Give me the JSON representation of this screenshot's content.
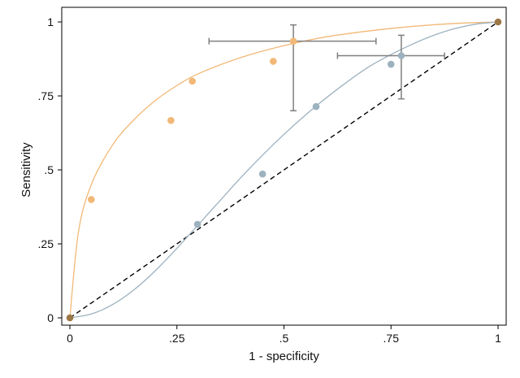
{
  "chart_data": {
    "type": "scatter",
    "xlabel": "1 - specificity",
    "ylabel": "Sensitivity",
    "xlim": [
      0,
      1
    ],
    "ylim": [
      0,
      1
    ],
    "x_ticks": [
      0,
      0.25,
      0.5,
      0.75,
      1
    ],
    "x_tick_labels": [
      "0",
      ".25",
      ".5",
      ".75",
      "1"
    ],
    "y_ticks": [
      0,
      0.25,
      0.5,
      0.75,
      1
    ],
    "y_tick_labels": [
      "0",
      ".25",
      ".5",
      ".75",
      "1"
    ],
    "grid": false,
    "legend": "none",
    "colors": {
      "orange": "#F2B877",
      "blue": "#9DB2BF",
      "endpoint": "#9C7846",
      "errorbar": "#7F7F7F",
      "reference": "#000000"
    },
    "series": [
      {
        "style": "points",
        "color": "orange",
        "x": [
          0.05,
          0.236,
          0.286,
          0.475,
          0.522
        ],
        "y": [
          0.4,
          0.667,
          0.8,
          0.867,
          0.935
        ]
      },
      {
        "style": "points",
        "color": "blue",
        "x": [
          0.298,
          0.45,
          0.575,
          0.75,
          0.774
        ],
        "y": [
          0.316,
          0.486,
          0.714,
          0.857,
          0.886
        ]
      },
      {
        "style": "points",
        "color": "endpoint",
        "x": [
          0,
          1
        ],
        "y": [
          0,
          1
        ]
      },
      {
        "style": "curve",
        "color": "orange",
        "x": [
          0,
          0.02,
          0.05,
          0.1,
          0.15,
          0.2,
          0.25,
          0.3,
          0.4,
          0.5,
          0.6,
          0.7,
          0.8,
          0.9,
          1.0
        ],
        "y": [
          0,
          0.29,
          0.45,
          0.585,
          0.67,
          0.735,
          0.785,
          0.825,
          0.88,
          0.92,
          0.95,
          0.97,
          0.985,
          0.995,
          1.0
        ]
      },
      {
        "style": "curve",
        "color": "blue",
        "x": [
          0,
          0.05,
          0.1,
          0.15,
          0.2,
          0.25,
          0.3,
          0.35,
          0.4,
          0.45,
          0.5,
          0.55,
          0.6,
          0.65,
          0.7,
          0.75,
          0.8,
          0.85,
          0.9,
          0.95,
          1.0
        ],
        "y": [
          0,
          0.013,
          0.045,
          0.095,
          0.16,
          0.235,
          0.315,
          0.395,
          0.475,
          0.55,
          0.62,
          0.685,
          0.745,
          0.8,
          0.85,
          0.89,
          0.925,
          0.955,
          0.978,
          0.993,
          1.0
        ]
      },
      {
        "style": "reference-line",
        "color": "reference",
        "x": [
          0,
          1
        ],
        "y": [
          0,
          1
        ]
      }
    ],
    "error_bars": [
      {
        "x": 0.522,
        "y": 0.935,
        "x_low": 0.325,
        "x_high": 0.715,
        "y_low": 0.7,
        "y_high": 0.99
      },
      {
        "x": 0.774,
        "y": 0.886,
        "x_low": 0.625,
        "x_high": 0.875,
        "y_low": 0.74,
        "y_high": 0.955
      }
    ]
  }
}
